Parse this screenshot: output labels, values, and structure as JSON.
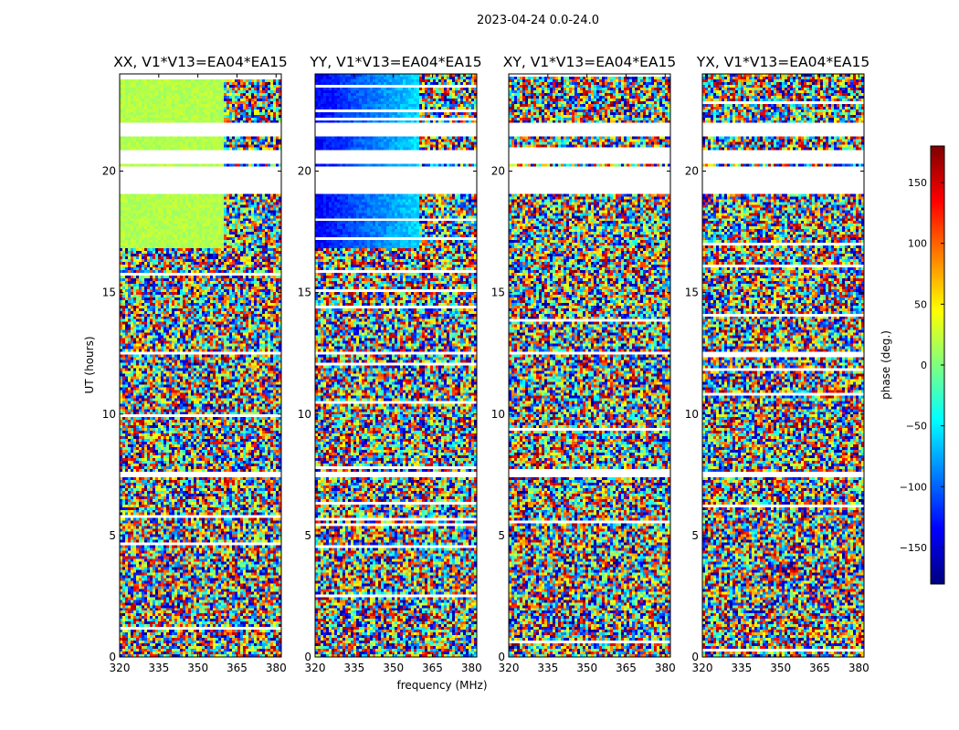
{
  "suptitle": "2023-04-24 0.0-24.0",
  "chart_data": {
    "type": "heatmap",
    "xlabel": "frequency (MHz)",
    "ylabel": "UT (hours)",
    "xlim": [
      320,
      382
    ],
    "ylim": [
      0,
      24
    ],
    "x_ticks": [
      320,
      335,
      350,
      365,
      380
    ],
    "y_ticks": [
      0,
      5,
      10,
      15,
      20
    ],
    "panels": [
      {
        "title": "XX, V1*V13=EA04*EA15",
        "pol": "XX"
      },
      {
        "title": "YY, V1*V13=EA04*EA15",
        "pol": "YY"
      },
      {
        "title": "XY, V1*V13=EA04*EA15",
        "pol": "XY"
      },
      {
        "title": "YX, V1*V13=EA04*EA15",
        "pol": "YX"
      }
    ],
    "colorbar": {
      "label": "phase (deg.)",
      "range": [
        -180,
        180
      ],
      "ticks": [
        -150,
        -100,
        -50,
        0,
        50,
        100,
        150
      ],
      "tick_labels": [
        "−150",
        "−100",
        "−50",
        "0",
        "50",
        "100",
        "150"
      ],
      "colormap": "jet"
    },
    "flagged_time_ranges_hours": [
      [
        19.1,
        20.2
      ],
      [
        20.3,
        20.9
      ],
      [
        21.4,
        22.0
      ],
      [
        12.4,
        12.6
      ],
      [
        7.4,
        7.6
      ]
    ]
  }
}
